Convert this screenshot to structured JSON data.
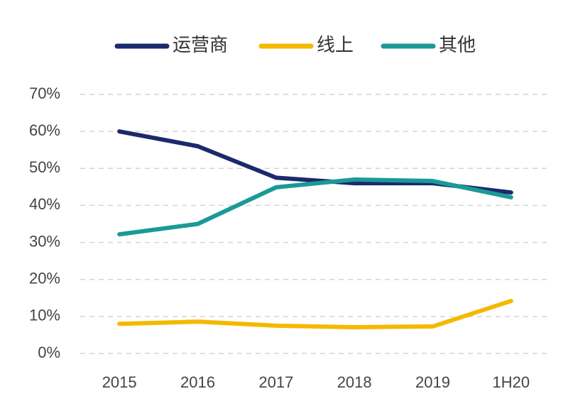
{
  "chart_data": {
    "type": "line",
    "categories": [
      "2015",
      "2016",
      "2017",
      "2018",
      "2019",
      "1H20"
    ],
    "series": [
      {
        "name": "运营商",
        "color": "#1b2a6b",
        "values": [
          60,
          56,
          47.5,
          46,
          46,
          43.5
        ]
      },
      {
        "name": "线上",
        "color": "#f5b800",
        "values": [
          8,
          8.6,
          7.5,
          7.1,
          7.3,
          14.2
        ]
      },
      {
        "name": "其他",
        "color": "#1a9a96",
        "values": [
          32.2,
          35,
          44.9,
          47,
          46.6,
          42.2
        ]
      }
    ],
    "ylim": [
      0,
      70
    ],
    "yticks": [
      {
        "value": 0,
        "label": "0%"
      },
      {
        "value": 10,
        "label": "10%"
      },
      {
        "value": 20,
        "label": "20%"
      },
      {
        "value": 30,
        "label": "30%"
      },
      {
        "value": 40,
        "label": "40%"
      },
      {
        "value": 50,
        "label": "50%"
      },
      {
        "value": 60,
        "label": "60%"
      },
      {
        "value": 70,
        "label": "70%"
      }
    ],
    "grid": true,
    "legend": "top"
  }
}
